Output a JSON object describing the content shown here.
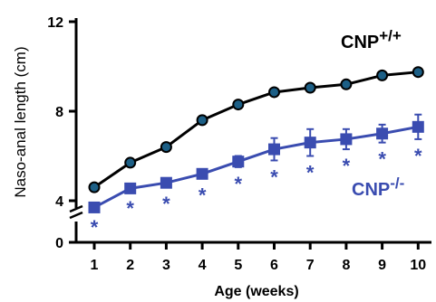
{
  "chart_data": {
    "type": "line",
    "x": [
      1,
      2,
      3,
      4,
      5,
      6,
      7,
      8,
      9,
      10
    ],
    "xlabel": "Age (weeks)",
    "ylabel": "Naso-anal length (cm)",
    "yticks": [
      "0",
      "4",
      "8",
      "12"
    ],
    "ylim": [
      0,
      12
    ],
    "axis_break": "between 0 and 4",
    "series": [
      {
        "name": "CNP",
        "superscript": "+/+",
        "color": "#000000",
        "fill": "#1c5f86",
        "marker": "circle",
        "values": [
          4.6,
          5.7,
          6.4,
          7.6,
          8.3,
          8.85,
          9.05,
          9.2,
          9.6,
          9.75
        ],
        "errors": [
          0.1,
          0.12,
          0.15,
          0.12,
          0.1,
          0.1,
          0.1,
          0.1,
          0.1,
          0.1
        ]
      },
      {
        "name": "CNP",
        "superscript": "-/-",
        "color": "#3a4cb0",
        "fill": "#3a4cb0",
        "marker": "square",
        "values": [
          3.7,
          4.55,
          4.8,
          5.2,
          5.75,
          6.3,
          6.6,
          6.75,
          7.0,
          7.3
        ],
        "errors": [
          0.15,
          0.15,
          0.2,
          0.2,
          0.25,
          0.5,
          0.6,
          0.45,
          0.4,
          0.55
        ],
        "significance": "*"
      }
    ],
    "grid": false
  }
}
